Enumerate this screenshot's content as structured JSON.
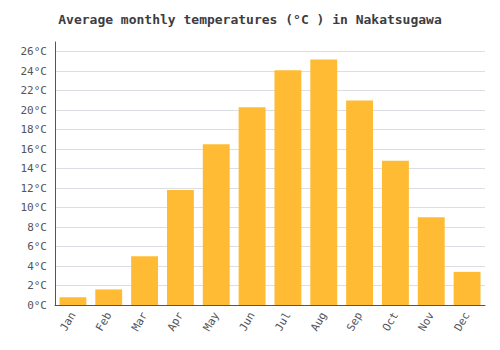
{
  "chart_data": {
    "type": "bar",
    "title": "Average monthly temperatures (°C ) in Nakatsugawa",
    "categories": [
      "Jan",
      "Feb",
      "Mar",
      "Apr",
      "May",
      "Jun",
      "Jul",
      "Aug",
      "Sep",
      "Oct",
      "Nov",
      "Dec"
    ],
    "values": [
      0.8,
      1.6,
      5.0,
      11.8,
      16.5,
      20.3,
      24.1,
      25.2,
      21.0,
      14.8,
      9.0,
      3.4
    ],
    "color": "#FFBB33",
    "ylim": [
      0,
      27
    ],
    "yticks": [
      {
        "value": 0,
        "label": "0°C"
      },
      {
        "value": 2,
        "label": "2°C"
      },
      {
        "value": 4,
        "label": "4°C"
      },
      {
        "value": 6,
        "label": "6°C"
      },
      {
        "value": 8,
        "label": "8°C"
      },
      {
        "value": 10,
        "label": "10°C"
      },
      {
        "value": 12,
        "label": "12°C"
      },
      {
        "value": 14,
        "label": "14°C"
      },
      {
        "value": 16,
        "label": "16°C"
      },
      {
        "value": 18,
        "label": "18°C"
      },
      {
        "value": 20,
        "label": "20°C"
      },
      {
        "value": 22,
        "label": "22°C"
      },
      {
        "value": 24,
        "label": "24°C"
      },
      {
        "value": 26,
        "label": "26°C"
      }
    ],
    "grid": true
  }
}
